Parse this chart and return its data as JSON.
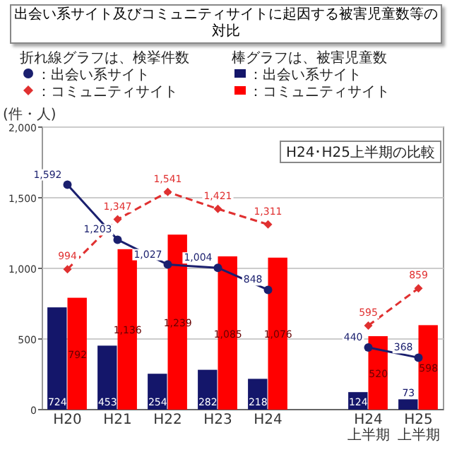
{
  "chart_data": {
    "type": "bar",
    "title": "出会い系サイト及びコミュニティサイトに起因する被害児童数等の対比",
    "ylabel": "(件・人)",
    "categories": [
      "H20",
      "H21",
      "H22",
      "H23",
      "H24",
      null,
      "H24上半期",
      "H25上半期"
    ],
    "series": [
      {
        "name": "：出会い系サイト",
        "type": "line",
        "color": "#1a1f6e",
        "marker": "circle",
        "line_style": "solid",
        "values": [
          1592,
          1203,
          1027,
          1004,
          848,
          null,
          440,
          368
        ],
        "value_labels": [
          "1,592",
          "1,203",
          "1,027",
          "1,004",
          "848",
          null,
          "440",
          "368"
        ]
      },
      {
        "name": "：コミュニティサイト",
        "type": "line",
        "color": "#e03030",
        "marker": "diamond",
        "line_style": "dashed",
        "values": [
          994,
          1347,
          1541,
          1421,
          1311,
          null,
          595,
          859
        ],
        "value_labels": [
          "994",
          "1,347",
          "1,541",
          "1,421",
          "1,311",
          null,
          "595",
          "859"
        ]
      },
      {
        "name": "：出会い系サイト",
        "color": "#14166a",
        "values": [
          724,
          453,
          254,
          282,
          218,
          null,
          124,
          73
        ],
        "value_labels": [
          "724",
          "453",
          "254",
          "282",
          "218",
          null,
          "124",
          "73"
        ]
      },
      {
        "name": "：コミュニティサイト",
        "color": "#ff0000",
        "values": [
          792,
          1136,
          1239,
          1085,
          1076,
          null,
          520,
          598
        ],
        "value_labels": [
          "792",
          "1,136",
          "1,239",
          "1,085",
          "1,076",
          null,
          "520",
          "598"
        ]
      }
    ],
    "annotations": [
      "折れ線グラフは、検挙件数",
      "棒グラフは、被害児童数",
      "H24･H25上半期の比較"
    ],
    "ylim": [
      0,
      2000
    ],
    "yticks": [
      {
        "value": 0,
        "label": "0"
      },
      {
        "value": 500,
        "label": "500"
      },
      {
        "value": 1000,
        "label": "1,000"
      },
      {
        "value": 1500,
        "label": "1,500"
      },
      {
        "value": 2000,
        "label": "2,000"
      }
    ],
    "grid": "y",
    "legend": "top"
  }
}
